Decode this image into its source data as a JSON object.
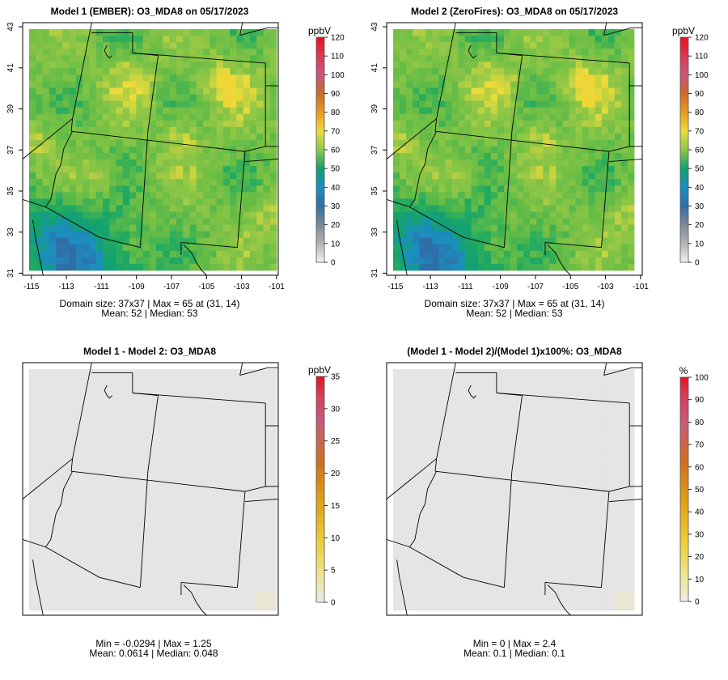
{
  "chart_data": [
    {
      "type": "heatmap",
      "title": "Model 1 (EMBER): O3_MDA8 on 05/17/2023",
      "unit": "ppbV",
      "x_ticks": [
        "-115",
        "-113",
        "-111",
        "-109",
        "-107",
        "-105",
        "-103",
        "-101"
      ],
      "y_ticks": [
        "31",
        "33",
        "35",
        "37",
        "39",
        "41",
        "43"
      ],
      "xlim": [
        -115.5,
        -100.9
      ],
      "ylim": [
        30.9,
        43.2
      ],
      "colorbar_ticks": [
        "0",
        "10",
        "20",
        "30",
        "40",
        "50",
        "60",
        "70",
        "80",
        "90",
        "100",
        "110",
        "120"
      ],
      "colorbar_range": [
        0,
        120
      ],
      "caption_line1": "Domain size: 37x37 | Max = 65 at (31, 14)",
      "caption_line2": "Mean: 52 |  Median: 53",
      "field": "o3"
    },
    {
      "type": "heatmap",
      "title": "Model 2 (ZeroFires): O3_MDA8 on 05/17/2023",
      "unit": "ppbV",
      "x_ticks": [
        "-115",
        "-113",
        "-111",
        "-109",
        "-107",
        "-105",
        "-103",
        "-101"
      ],
      "y_ticks": [
        "31",
        "33",
        "35",
        "37",
        "39",
        "41",
        "43"
      ],
      "xlim": [
        -115.5,
        -100.9
      ],
      "ylim": [
        30.9,
        43.2
      ],
      "colorbar_ticks": [
        "0",
        "10",
        "20",
        "30",
        "40",
        "50",
        "60",
        "70",
        "80",
        "90",
        "100",
        "110",
        "120"
      ],
      "colorbar_range": [
        0,
        120
      ],
      "caption_line1": "Domain size: 37x37 | Max = 65 at (31, 14)",
      "caption_line2": "Mean: 52 |  Median: 53",
      "field": "o3"
    },
    {
      "type": "heatmap",
      "title": "Model 1 - Model 2: O3_MDA8",
      "unit": "ppbV",
      "x_ticks": [],
      "y_ticks": [],
      "colorbar_ticks": [
        "0",
        "5",
        "10",
        "15",
        "20",
        "25",
        "30",
        "35"
      ],
      "colorbar_range": [
        0,
        35
      ],
      "caption_line1": "Min = -0.0294 | Max = 1.25",
      "caption_line2": "Mean: 0.0614 |  Median: 0.048",
      "field": "diff"
    },
    {
      "type": "heatmap",
      "title": "(Model 1 - Model 2)/(Model 1)x100%: O3_MDA8",
      "unit": "%",
      "x_ticks": [],
      "y_ticks": [],
      "colorbar_ticks": [
        "0",
        "10",
        "20",
        "30",
        "40",
        "50",
        "60",
        "70",
        "80",
        "90",
        "100"
      ],
      "colorbar_range": [
        0,
        100
      ],
      "caption_line1": "Min = 0 | Max = 2.4",
      "caption_line2": "Mean: 0.1 |  Median: 0.1",
      "field": "diff"
    }
  ]
}
